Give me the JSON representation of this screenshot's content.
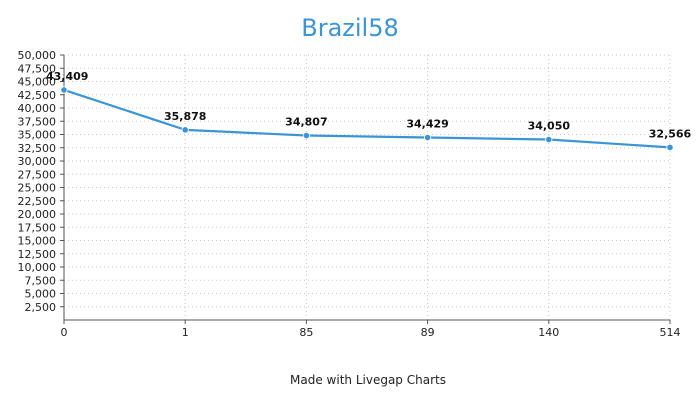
{
  "chart_data": {
    "type": "line",
    "title": "Brazil58",
    "xlabel": "",
    "ylabel": "",
    "categories": [
      "0",
      "1",
      "85",
      "89",
      "140",
      "514"
    ],
    "values": [
      43409,
      35878,
      34807,
      34429,
      34050,
      32566
    ],
    "data_labels": [
      "43,409",
      "35,878",
      "34,807",
      "34,429",
      "34,050",
      "32,566"
    ],
    "y_ticks": [
      2500,
      5000,
      7500,
      10000,
      12500,
      15000,
      17500,
      20000,
      22500,
      25000,
      27500,
      30000,
      32500,
      35000,
      37500,
      40000,
      42500,
      45000,
      47500,
      50000
    ],
    "y_tick_labels": [
      "2,500",
      "5,000",
      "7,500",
      "10,000",
      "12,500",
      "15,000",
      "17,500",
      "20,000",
      "22,500",
      "25,000",
      "27,500",
      "30,000",
      "32,500",
      "35,000",
      "37,500",
      "40,000",
      "42,500",
      "45,000",
      "47,500",
      "50,000"
    ],
    "ylim": [
      0,
      50000
    ],
    "grid": true,
    "legend": false
  },
  "footer": {
    "text": "Made with Livegap Charts"
  },
  "colors": {
    "line": "#3a95d6",
    "title": "#3a95d6",
    "grid": "#c8c8c8",
    "axis": "#555555"
  }
}
